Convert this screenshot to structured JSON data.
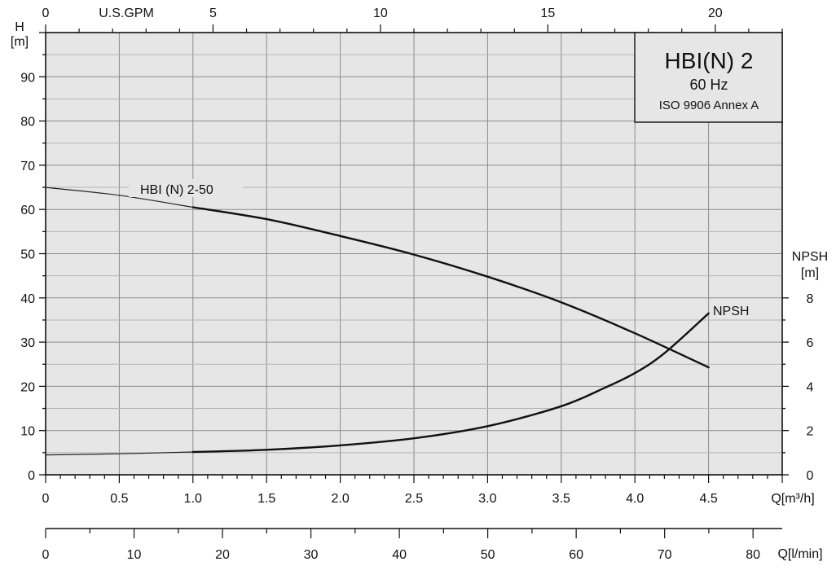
{
  "chart_data": {
    "type": "line",
    "title_box": {
      "title": "HBI(N) 2",
      "frequency": "60 Hz",
      "standard": "ISO 9906 Annex A"
    },
    "left_axis": {
      "label_line1": "H",
      "label_line2": "[m]",
      "range": [
        0,
        100
      ],
      "ticks": [
        0,
        10,
        20,
        30,
        40,
        50,
        60,
        70,
        80,
        90
      ]
    },
    "right_axis": {
      "label_line1": "NPSH",
      "label_line2": "[m]",
      "range": [
        0,
        20
      ],
      "ticks": [
        0,
        2,
        4,
        6,
        8
      ]
    },
    "bottom_axis": {
      "label": "Q[m³/h]",
      "range": [
        0,
        5
      ],
      "ticks": [
        "0",
        "0.5",
        "1.0",
        "1.5",
        "2.0",
        "2.5",
        "3.0",
        "3.5",
        "4.0",
        "4.5"
      ]
    },
    "top_axis": {
      "label": "U.S.GPM",
      "range": [
        0,
        22
      ],
      "ticks": [
        0,
        5,
        10,
        15,
        20
      ]
    },
    "extra_axis": {
      "label": "Q[l/min]",
      "range": [
        0,
        83.3
      ],
      "ticks": [
        0,
        10,
        20,
        30,
        40,
        50,
        60,
        70,
        80
      ]
    },
    "series": [
      {
        "name": "HBI (N) 2-50",
        "axis": "left",
        "x": [
          0,
          0.5,
          1.0,
          1.5,
          2.0,
          2.5,
          3.0,
          3.5,
          4.0,
          4.5
        ],
        "y": [
          65,
          63.2,
          60.5,
          57.8,
          54,
          49.8,
          44.8,
          39,
          32,
          24.3
        ]
      },
      {
        "name": "NPSH",
        "axis": "right",
        "x": [
          0,
          0.5,
          1.0,
          1.5,
          2.0,
          2.5,
          3.0,
          3.5,
          3.8,
          4.0,
          4.2,
          4.5
        ],
        "y": [
          0.9,
          0.95,
          1.03,
          1.13,
          1.33,
          1.65,
          2.2,
          3.1,
          3.95,
          4.6,
          5.5,
          7.3
        ]
      }
    ],
    "grid": true
  }
}
